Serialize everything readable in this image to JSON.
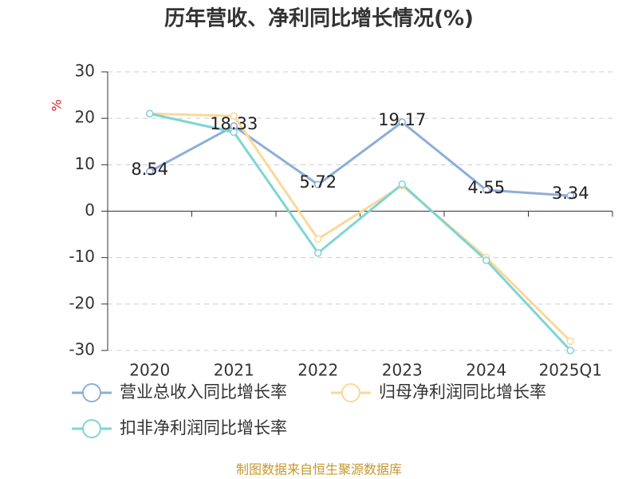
{
  "chart_data": {
    "type": "line",
    "title": "历年营收、净利同比增长情况(%)",
    "y_label": "%",
    "categories": [
      "2020",
      "2021",
      "2022",
      "2023",
      "2024",
      "2025Q1"
    ],
    "series": [
      {
        "name": "营业总收入同比增长率",
        "color": "#8eaed8",
        "values": [
          8.54,
          18.33,
          5.72,
          19.17,
          4.55,
          3.34
        ],
        "data_labels": true
      },
      {
        "name": "归母净利润同比增长率",
        "color": "#fbd89a",
        "values": [
          21,
          20.5,
          -6,
          5.5,
          -10,
          -28
        ]
      },
      {
        "name": "扣非净利润同比增长率",
        "color": "#7fd4d4",
        "values": [
          21,
          17,
          -9,
          5.8,
          -10.6,
          -30
        ]
      }
    ],
    "ylim": [
      -30,
      30
    ],
    "yticks": [
      -30,
      -20,
      -10,
      0,
      10,
      20,
      30
    ],
    "grid": true,
    "source": "制图数据来自恒生聚源数据库"
  }
}
